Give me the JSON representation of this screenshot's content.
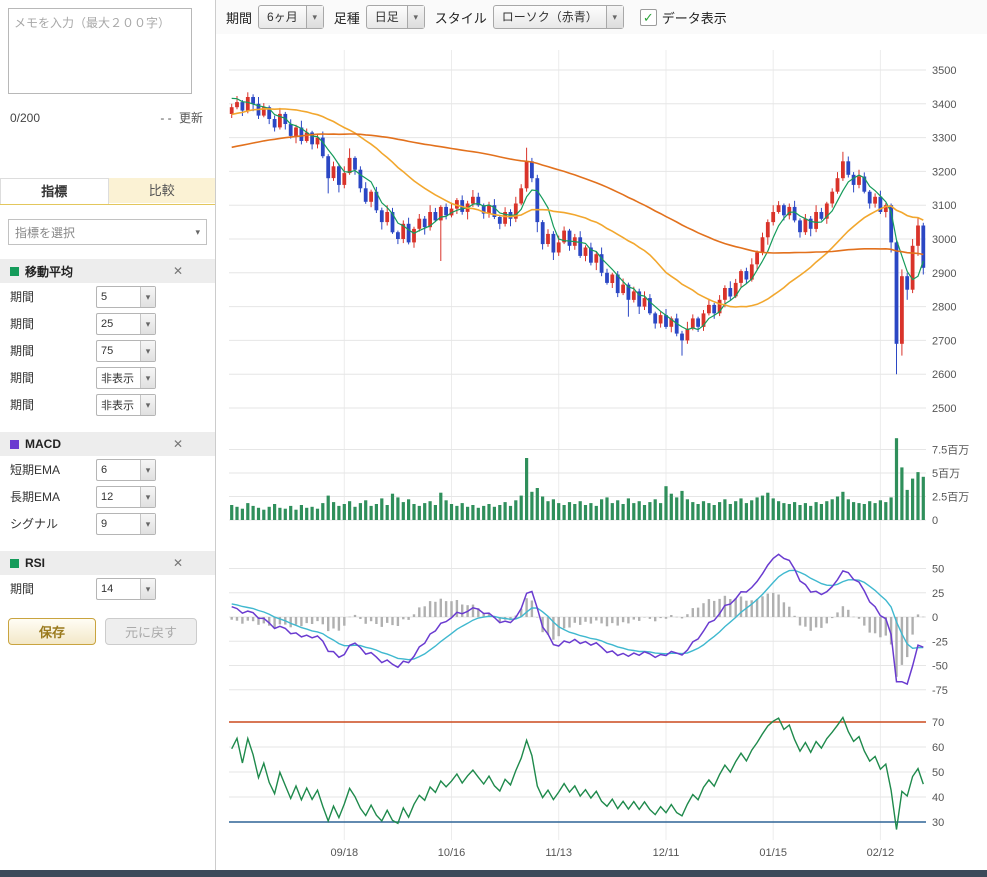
{
  "icons": {
    "chevron_down": "▾",
    "close": "✕",
    "check": "✓"
  },
  "sidebar": {
    "memo_placeholder": "メモを入力（最大２００字）",
    "memo_counter": "0/200",
    "memo_updated_prefix": "- -",
    "memo_update_button": "更新",
    "tabs": [
      {
        "label": "指標"
      },
      {
        "label": "比較"
      }
    ],
    "indicator_select_placeholder": "指標を選択",
    "sections": [
      {
        "title": "移動平均",
        "color": "#159b5a",
        "rows": [
          {
            "label": "期間",
            "value": "5"
          },
          {
            "label": "期間",
            "value": "25"
          },
          {
            "label": "期間",
            "value": "75"
          },
          {
            "label": "期間",
            "value": "非表示"
          },
          {
            "label": "期間",
            "value": "非表示"
          }
        ]
      },
      {
        "title": "MACD",
        "color": "#6a3bd0",
        "rows": [
          {
            "label": "短期EMA",
            "value": "6"
          },
          {
            "label": "長期EMA",
            "value": "12"
          },
          {
            "label": "シグナル",
            "value": "9"
          }
        ]
      },
      {
        "title": "RSI",
        "color": "#159b5a",
        "rows": [
          {
            "label": "期間",
            "value": "14"
          }
        ]
      }
    ],
    "save_button": "保存",
    "reset_button": "元に戻す"
  },
  "toolbar": {
    "period_label": "期間",
    "period_value": "6ヶ月",
    "interval_label": "足種",
    "interval_value": "日足",
    "style_label": "スタイル",
    "style_value": "ローソク（赤青）",
    "data_display_label": "データ表示",
    "data_display_checked": true
  },
  "chart_data": {
    "type": "candlestick",
    "x_labels": [
      {
        "index": 21,
        "label": "09/18"
      },
      {
        "index": 41,
        "label": "10/16"
      },
      {
        "index": 61,
        "label": "11/13"
      },
      {
        "index": 81,
        "label": "12/11"
      },
      {
        "index": 101,
        "label": "01/15"
      },
      {
        "index": 121,
        "label": "02/12"
      }
    ],
    "price_axis": {
      "min": 2500,
      "max": 3500,
      "step": 100
    },
    "colors": {
      "up": "#d9332a",
      "down": "#2b47c4"
    },
    "candles": [
      [
        3370,
        3400,
        3358,
        3390
      ],
      [
        3390,
        3423,
        3384,
        3405
      ],
      [
        3405,
        3411,
        3364,
        3380
      ],
      [
        3380,
        3434,
        3372,
        3420
      ],
      [
        3420,
        3428,
        3378,
        3400
      ],
      [
        3400,
        3420,
        3355,
        3365
      ],
      [
        3365,
        3402,
        3360,
        3390
      ],
      [
        3390,
        3395,
        3340,
        3355
      ],
      [
        3355,
        3365,
        3318,
        3330
      ],
      [
        3330,
        3388,
        3324,
        3370
      ],
      [
        3370,
        3376,
        3324,
        3340
      ],
      [
        3340,
        3354,
        3297,
        3305
      ],
      [
        3305,
        3338,
        3283,
        3330
      ],
      [
        3330,
        3350,
        3280,
        3290
      ],
      [
        3290,
        3327,
        3285,
        3315
      ],
      [
        3315,
        3320,
        3265,
        3280
      ],
      [
        3280,
        3310,
        3268,
        3300
      ],
      [
        3300,
        3318,
        3239,
        3245
      ],
      [
        3245,
        3251,
        3135,
        3180
      ],
      [
        3180,
        3229,
        3172,
        3215
      ],
      [
        3215,
        3223,
        3138,
        3160
      ],
      [
        3160,
        3215,
        3150,
        3195
      ],
      [
        3195,
        3268,
        3190,
        3240
      ],
      [
        3240,
        3245,
        3190,
        3205
      ],
      [
        3205,
        3215,
        3138,
        3150
      ],
      [
        3150,
        3168,
        3104,
        3110
      ],
      [
        3110,
        3146,
        3094,
        3140
      ],
      [
        3140,
        3154,
        3077,
        3085
      ],
      [
        3085,
        3093,
        3028,
        3050
      ],
      [
        3050,
        3100,
        3040,
        3080
      ],
      [
        3080,
        3092,
        3015,
        3020
      ],
      [
        3020,
        3025,
        2985,
        3000
      ],
      [
        3000,
        3055,
        2988,
        3045
      ],
      [
        3045,
        3063,
        2984,
        2990
      ],
      [
        2990,
        3036,
        2974,
        3030
      ],
      [
        3030,
        3074,
        3022,
        3060
      ],
      [
        3060,
        3068,
        3013,
        3035
      ],
      [
        3035,
        3100,
        3025,
        3080
      ],
      [
        3080,
        3092,
        3050,
        3055
      ],
      [
        3055,
        3100,
        2935,
        3095
      ],
      [
        3095,
        3105,
        3058,
        3070
      ],
      [
        3070,
        3108,
        3064,
        3090
      ],
      [
        3090,
        3121,
        3074,
        3115
      ],
      [
        3115,
        3129,
        3072,
        3080
      ],
      [
        3080,
        3113,
        3058,
        3105
      ],
      [
        3105,
        3145,
        3095,
        3125
      ],
      [
        3125,
        3137,
        3095,
        3100
      ],
      [
        3100,
        3105,
        3060,
        3075
      ],
      [
        3075,
        3110,
        3063,
        3100
      ],
      [
        3100,
        3118,
        3059,
        3065
      ],
      [
        3065,
        3071,
        3029,
        3045
      ],
      [
        3045,
        3094,
        3037,
        3080
      ],
      [
        3080,
        3088,
        3038,
        3060
      ],
      [
        3060,
        3125,
        3050,
        3105
      ],
      [
        3105,
        3162,
        3100,
        3150
      ],
      [
        3150,
        3270,
        3140,
        3230
      ],
      [
        3230,
        3240,
        3168,
        3180
      ],
      [
        3180,
        3190,
        3020,
        3050
      ],
      [
        3050,
        3056,
        2969,
        2985
      ],
      [
        2985,
        3029,
        2977,
        3015
      ],
      [
        3015,
        3023,
        2938,
        2960
      ],
      [
        2960,
        3010,
        2950,
        2990
      ],
      [
        2990,
        3037,
        2985,
        3025
      ],
      [
        3025,
        3030,
        2965,
        2980
      ],
      [
        2980,
        3015,
        2968,
        3005
      ],
      [
        3005,
        3023,
        2944,
        2950
      ],
      [
        2950,
        2981,
        2934,
        2975
      ],
      [
        2975,
        2989,
        2922,
        2930
      ],
      [
        2930,
        2963,
        2908,
        2955
      ],
      [
        2955,
        2975,
        2890,
        2900
      ],
      [
        2900,
        2912,
        2865,
        2870
      ],
      [
        2870,
        2900,
        2855,
        2895
      ],
      [
        2895,
        2905,
        2828,
        2840
      ],
      [
        2840,
        2883,
        2834,
        2865
      ],
      [
        2865,
        2871,
        2770,
        2820
      ],
      [
        2820,
        2859,
        2812,
        2845
      ],
      [
        2845,
        2853,
        2778,
        2800
      ],
      [
        2800,
        2845,
        2790,
        2825
      ],
      [
        2825,
        2837,
        2775,
        2780
      ],
      [
        2780,
        2785,
        2735,
        2750
      ],
      [
        2750,
        2785,
        2738,
        2775
      ],
      [
        2775,
        2793,
        2734,
        2740
      ],
      [
        2740,
        2771,
        2724,
        2765
      ],
      [
        2765,
        2779,
        2712,
        2720
      ],
      [
        2720,
        2728,
        2655,
        2700
      ],
      [
        2700,
        2755,
        2690,
        2735
      ],
      [
        2735,
        2777,
        2730,
        2765
      ],
      [
        2765,
        2770,
        2725,
        2740
      ],
      [
        2740,
        2790,
        2728,
        2780
      ],
      [
        2780,
        2823,
        2774,
        2805
      ],
      [
        2805,
        2811,
        2764,
        2780
      ],
      [
        2780,
        2834,
        2772,
        2820
      ],
      [
        2820,
        2863,
        2798,
        2855
      ],
      [
        2855,
        2875,
        2820,
        2830
      ],
      [
        2830,
        2882,
        2825,
        2870
      ],
      [
        2870,
        2910,
        2855,
        2905
      ],
      [
        2905,
        2915,
        2868,
        2880
      ],
      [
        2880,
        2943,
        2874,
        2925
      ],
      [
        2925,
        2966,
        2909,
        2960
      ],
      [
        2960,
        3019,
        2952,
        3005
      ],
      [
        3005,
        3058,
        2983,
        3050
      ],
      [
        3050,
        3100,
        3040,
        3080
      ],
      [
        3080,
        3112,
        3075,
        3100
      ],
      [
        3100,
        3105,
        3055,
        3070
      ],
      [
        3070,
        3105,
        3058,
        3095
      ],
      [
        3095,
        3113,
        3049,
        3055
      ],
      [
        3055,
        3061,
        3004,
        3020
      ],
      [
        3020,
        3074,
        3012,
        3060
      ],
      [
        3060,
        3068,
        3008,
        3030
      ],
      [
        3030,
        3100,
        3020,
        3080
      ],
      [
        3080,
        3092,
        3055,
        3060
      ],
      [
        3060,
        3110,
        3045,
        3105
      ],
      [
        3105,
        3150,
        3093,
        3140
      ],
      [
        3140,
        3198,
        3134,
        3180
      ],
      [
        3180,
        3258,
        3172,
        3230
      ],
      [
        3230,
        3244,
        3182,
        3190
      ],
      [
        3190,
        3198,
        3138,
        3160
      ],
      [
        3160,
        3205,
        3150,
        3185
      ],
      [
        3185,
        3197,
        3135,
        3140
      ],
      [
        3140,
        3145,
        3090,
        3105
      ],
      [
        3105,
        3135,
        3093,
        3125
      ],
      [
        3125,
        3143,
        3074,
        3080
      ],
      [
        3080,
        3106,
        3064,
        3100
      ],
      [
        3100,
        3105,
        2960,
        2990
      ],
      [
        2990,
        2995,
        2600,
        2690
      ],
      [
        2690,
        2910,
        2655,
        2890
      ],
      [
        2890,
        2900,
        2820,
        2850
      ],
      [
        2850,
        3000,
        2840,
        2980
      ],
      [
        2980,
        3065,
        2950,
        3040
      ],
      [
        3040,
        3048,
        2895,
        2915
      ]
    ],
    "volume": {
      "color": "#2f8f5b",
      "ticks": [
        [
          0,
          "0"
        ],
        [
          2.5,
          "2.5百万"
        ],
        [
          5,
          "5百万"
        ],
        [
          7.5,
          "7.5百万"
        ]
      ],
      "values": [
        1.6,
        1.4,
        1.2,
        1.8,
        1.5,
        1.3,
        1.1,
        1.4,
        1.7,
        1.3,
        1.2,
        1.5,
        1.1,
        1.6,
        1.3,
        1.4,
        1.2,
        1.8,
        2.6,
        1.9,
        1.5,
        1.7,
        2.0,
        1.4,
        1.8,
        2.1,
        1.5,
        1.7,
        2.3,
        1.6,
        2.8,
        2.4,
        1.9,
        2.2,
        1.7,
        1.5,
        1.8,
        2.0,
        1.6,
        2.9,
        2.1,
        1.7,
        1.5,
        1.8,
        1.4,
        1.6,
        1.3,
        1.5,
        1.7,
        1.4,
        1.6,
        1.9,
        1.5,
        2.1,
        2.6,
        6.6,
        3.0,
        3.4,
        2.5,
        2.0,
        2.2,
        1.8,
        1.6,
        1.9,
        1.7,
        2.0,
        1.6,
        1.8,
        1.5,
        2.2,
        2.4,
        1.8,
        2.1,
        1.7,
        2.3,
        1.8,
        2.0,
        1.6,
        1.9,
        2.2,
        1.8,
        3.6,
        2.8,
        2.4,
        3.1,
        2.2,
        1.9,
        1.7,
        2.0,
        1.8,
        1.6,
        1.9,
        2.2,
        1.7,
        2.0,
        2.3,
        1.8,
        2.1,
        2.4,
        2.6,
        2.9,
        2.3,
        2.0,
        1.8,
        1.7,
        1.9,
        1.6,
        1.8,
        1.5,
        1.9,
        1.7,
        2.0,
        2.2,
        2.5,
        3.0,
        2.2,
        1.9,
        1.8,
        1.7,
        2.0,
        1.8,
        2.1,
        1.9,
        2.4,
        8.7,
        5.6,
        3.2,
        4.4,
        5.1,
        4.6
      ]
    },
    "indicators": {
      "sma": {
        "periods": [
          5,
          25,
          75
        ],
        "colors": [
          "#159b5a",
          "#f2a72e",
          "#e2711d"
        ]
      },
      "macd": {
        "fast": 6,
        "slow": 12,
        "signal": 9,
        "axis": {
          "min": -75,
          "max": 50,
          "step": 25
        },
        "colors": {
          "macd": "#6a3bd0",
          "signal": "#3fb8cf",
          "hist": "#b0b0b0"
        }
      },
      "rsi": {
        "period": 14,
        "axis": {
          "min": 30,
          "max": 70,
          "step": 10
        },
        "overbought": 70,
        "oversold": 30,
        "colors": {
          "line": "#1f8a4c",
          "overbought": "#cc4a1e",
          "oversold": "#2e6496"
        }
      }
    },
    "warmup": {
      "from": 3150,
      "to": 3420,
      "days": 75,
      "power": 1.3,
      "wiggle": 15
    }
  }
}
